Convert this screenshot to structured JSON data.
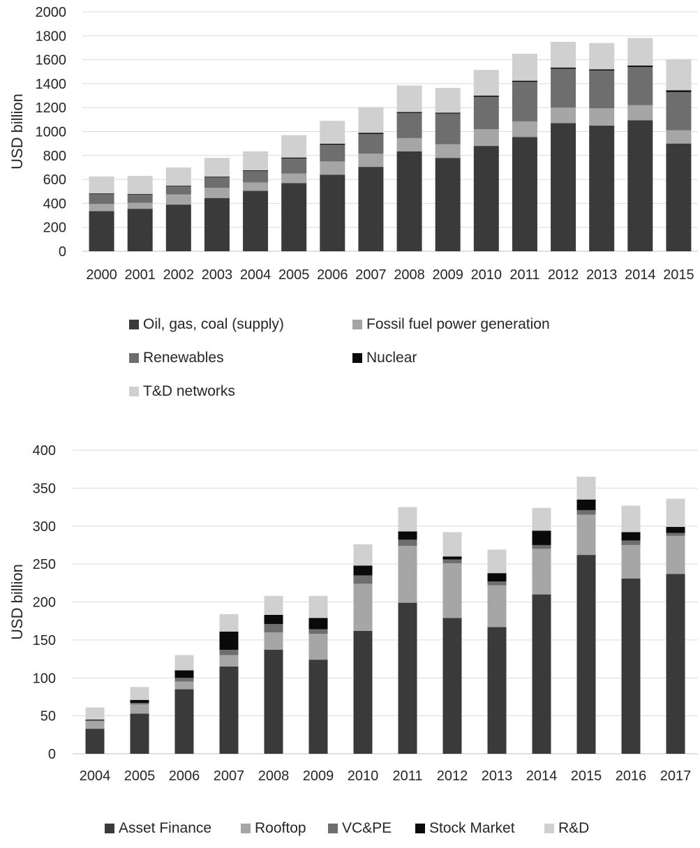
{
  "chart_data": [
    {
      "type": "bar",
      "stacked": true,
      "title": "",
      "xlabel": "",
      "ylabel": "USD billion",
      "ylim": [
        0,
        2000
      ],
      "yticks": [
        "0",
        "200",
        "400",
        "600",
        "800",
        "1000",
        "1200",
        "1400",
        "1600",
        "1800",
        "2000"
      ],
      "grid": true,
      "legend_position": "bottom",
      "categories": [
        "2000",
        "2001",
        "2002",
        "2003",
        "2004",
        "2005",
        "2006",
        "2007",
        "2008",
        "2009",
        "2010",
        "2011",
        "2012",
        "2013",
        "2014",
        "2015"
      ],
      "series": [
        {
          "name": "Oil, gas, coal (supply)",
          "color": "#3a3a3a",
          "values": [
            335,
            355,
            390,
            445,
            505,
            570,
            640,
            705,
            835,
            780,
            880,
            955,
            1070,
            1050,
            1095,
            900
          ]
        },
        {
          "name": "Fossil fuel power generation",
          "color": "#a6a6a6",
          "values": [
            60,
            50,
            85,
            85,
            70,
            80,
            110,
            110,
            110,
            115,
            140,
            130,
            130,
            145,
            125,
            110
          ]
        },
        {
          "name": "Renewables",
          "color": "#6e6e6e",
          "values": [
            85,
            70,
            70,
            90,
            95,
            125,
            140,
            165,
            210,
            255,
            270,
            330,
            325,
            315,
            320,
            320
          ]
        },
        {
          "name": "Nuclear",
          "color": "#0a0a0a",
          "values": [
            4,
            4,
            4,
            4,
            6,
            8,
            8,
            10,
            8,
            8,
            10,
            10,
            10,
            10,
            12,
            15
          ]
        },
        {
          "name": "T&D networks",
          "color": "#d0d0d0",
          "values": [
            141,
            151,
            151,
            156,
            159,
            187,
            192,
            215,
            222,
            207,
            215,
            225,
            215,
            220,
            230,
            260
          ]
        }
      ]
    },
    {
      "type": "bar",
      "stacked": true,
      "title": "",
      "xlabel": "",
      "ylabel": "USD billion",
      "ylim": [
        0,
        400
      ],
      "yticks": [
        "0",
        "50",
        "100",
        "150",
        "200",
        "250",
        "300",
        "350",
        "400"
      ],
      "grid": true,
      "legend_position": "bottom",
      "categories": [
        "2004",
        "2005",
        "2006",
        "2007",
        "2008",
        "2009",
        "2010",
        "2011",
        "2012",
        "2013",
        "2014",
        "2015",
        "2016",
        "2017"
      ],
      "series": [
        {
          "name": "Asset Finance",
          "color": "#3a3a3a",
          "values": [
            33,
            53,
            85,
            115,
            137,
            124,
            162,
            199,
            179,
            167,
            210,
            262,
            231,
            237
          ]
        },
        {
          "name": "Rooftop",
          "color": "#a6a6a6",
          "values": [
            10,
            12,
            10,
            15,
            23,
            34,
            62,
            75,
            72,
            55,
            60,
            53,
            44,
            50
          ]
        },
        {
          "name": "VC&PE",
          "color": "#6e6e6e",
          "values": [
            1,
            2,
            5,
            7,
            11,
            6,
            11,
            8,
            5,
            5,
            5,
            6,
            6,
            4
          ]
        },
        {
          "name": "Stock Market",
          "color": "#0a0a0a",
          "values": [
            1,
            4,
            10,
            24,
            12,
            15,
            13,
            11,
            4,
            11,
            19,
            14,
            11,
            8
          ]
        },
        {
          "name": "R&D",
          "color": "#d0d0d0",
          "values": [
            16,
            17,
            20,
            23,
            25,
            29,
            28,
            32,
            32,
            31,
            30,
            30,
            35,
            37
          ]
        }
      ]
    }
  ]
}
